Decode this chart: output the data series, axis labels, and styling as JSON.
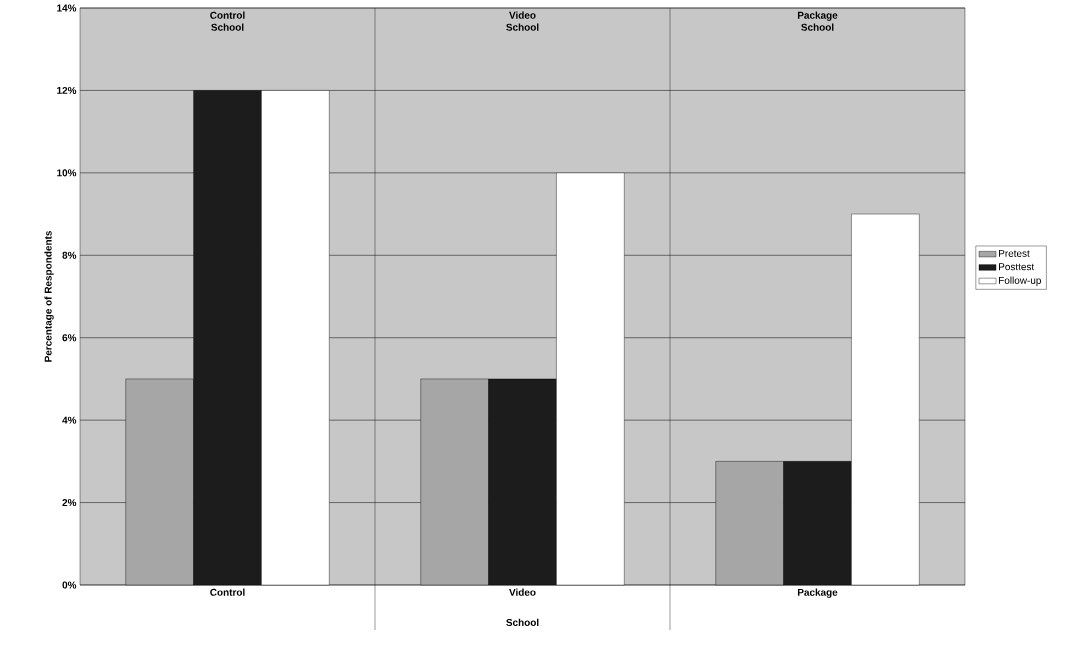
{
  "chart_data": {
    "type": "bar",
    "xlabel": "School",
    "ylabel": "Percentage of Respondents",
    "categories": [
      "Control",
      "Video",
      "Package"
    ],
    "series": [
      {
        "name": "Pretest",
        "color": "#a6a6a6",
        "values": [
          5,
          5,
          3
        ]
      },
      {
        "name": "Posttest",
        "color": "#1c1c1c",
        "values": [
          12,
          5,
          3
        ]
      },
      {
        "name": "Follow-up",
        "color": "#ffffff",
        "values": [
          12,
          10,
          9
        ]
      }
    ],
    "ylim": [
      0,
      14
    ],
    "yticks": [
      {
        "value": 0,
        "label": "0%"
      },
      {
        "value": 2,
        "label": "2%"
      },
      {
        "value": 4,
        "label": "4%"
      },
      {
        "value": 6,
        "label": "6%"
      },
      {
        "value": 8,
        "label": "8%"
      },
      {
        "value": 10,
        "label": "10%"
      },
      {
        "value": 12,
        "label": "12%"
      },
      {
        "value": 14,
        "label": "14%"
      }
    ],
    "grid": "y",
    "legend": "right",
    "annotations": [
      "Control School",
      "Video School",
      "Package School"
    ]
  }
}
